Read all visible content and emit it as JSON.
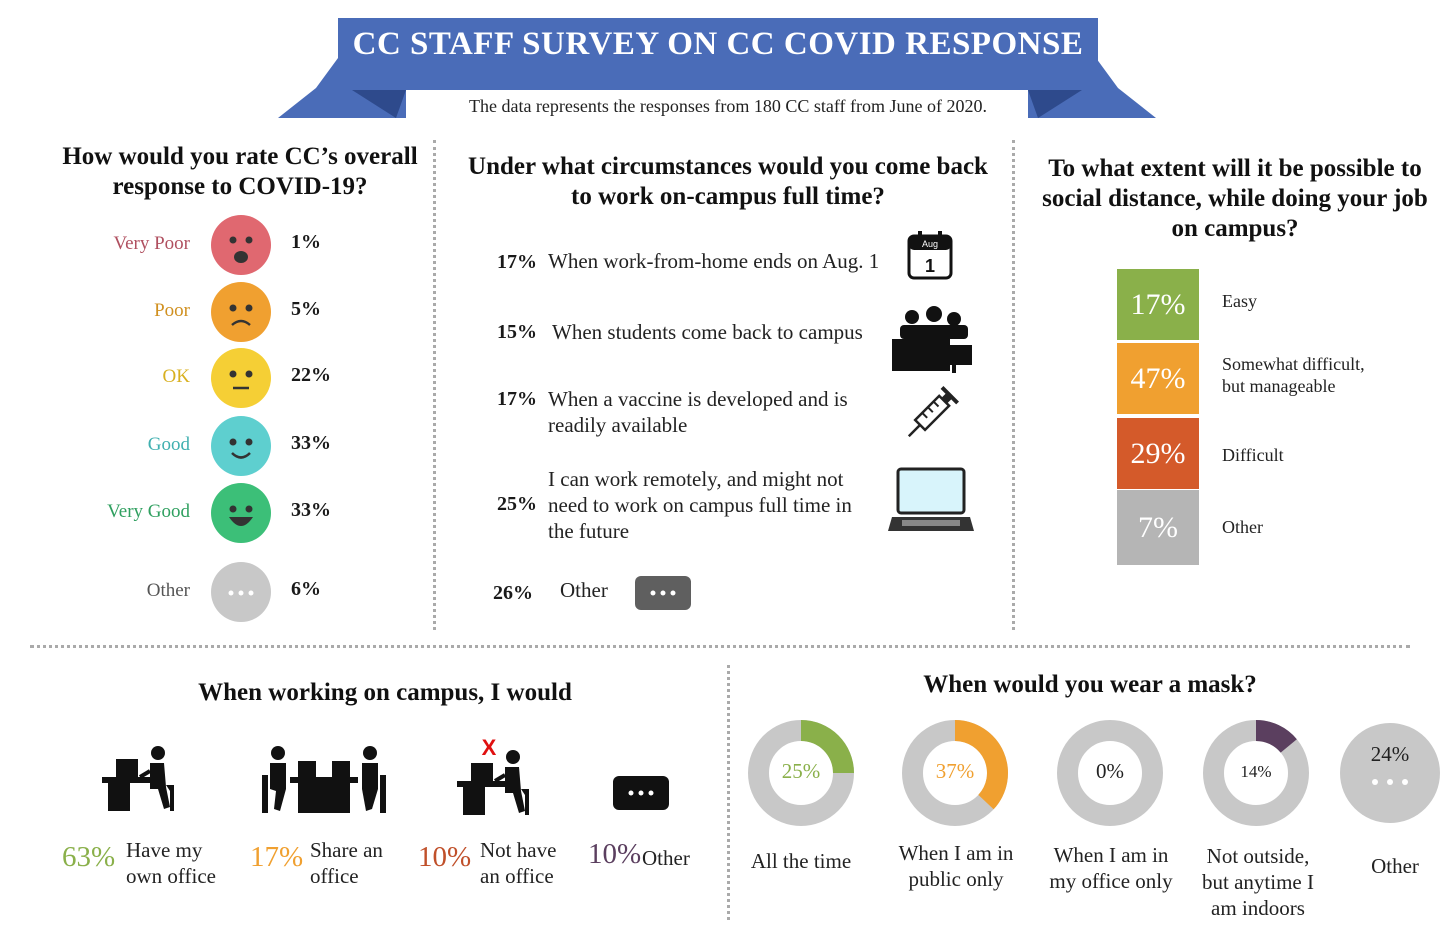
{
  "header": {
    "title": "CC STAFF SURVEY ON CC COVID RESPONSE",
    "subtitle": "The data represents the responses from 180 CC staff from June of 2020."
  },
  "colors": {
    "banner": "#4a6cb8",
    "banner_dark": "#2e4a8c",
    "very_poor": "#e06870",
    "poor": "#f0a030",
    "ok": "#f5cf35",
    "good": "#5ecfcf",
    "very_good": "#3cbf78",
    "other": "#c8c8c8",
    "easy": "#8ab04a",
    "somewhat": "#f0a030",
    "difficult": "#d45a2a",
    "dist_other": "#b5b5b5"
  },
  "chart_data": [
    {
      "type": "bar",
      "title": "How would you rate CC’s overall response to COVID-19?",
      "categories": [
        "Very Poor",
        "Poor",
        "OK",
        "Good",
        "Very Good",
        "Other"
      ],
      "values": [
        1,
        5,
        22,
        33,
        33,
        6
      ],
      "labels": [
        "1%",
        "5%",
        "22%",
        "33%",
        "33%",
        "6%"
      ],
      "icons": [
        "angry-face-icon",
        "sad-face-icon",
        "neutral-face-icon",
        "smile-face-icon",
        "grin-face-icon",
        "ellipsis-icon"
      ]
    },
    {
      "type": "table",
      "title": "Under what circumstances would you come back to work on-campus full time?",
      "rows": [
        {
          "pct": "17%",
          "value": 17,
          "lines": [
            "When work-from-home ends on Aug. 1"
          ],
          "icon": "calendar-icon",
          "cal_month": "Aug",
          "cal_day": "1"
        },
        {
          "pct": "15%",
          "value": 15,
          "lines": [
            "When students come back to campus"
          ],
          "icon": "classroom-icon"
        },
        {
          "pct": "17%",
          "value": 17,
          "lines": [
            "When a vaccine is developed and is",
            "readily available"
          ],
          "icon": "syringe-icon"
        },
        {
          "pct": "25%",
          "value": 25,
          "lines": [
            "I can work remotely, and might not",
            "need to work on campus full time in",
            "the future"
          ],
          "icon": "laptop-icon"
        },
        {
          "pct": "26%",
          "value": 26,
          "lines": [
            "Other"
          ],
          "icon": "ellipsis-icon"
        }
      ]
    },
    {
      "type": "bar",
      "title": "To what extent will it be possible to social distance, while doing your job on campus?",
      "categories": [
        "Easy",
        "Somewhat difficult, but manageable",
        "Difficult",
        "Other"
      ],
      "values": [
        17,
        47,
        29,
        7
      ],
      "labels": [
        "17%",
        "47%",
        "29%",
        "7%"
      ],
      "label_lines": [
        [
          "Easy"
        ],
        [
          "Somewhat difficult,",
          "but manageable"
        ],
        [
          "Difficult"
        ],
        [
          "Other"
        ]
      ]
    },
    {
      "type": "bar",
      "title": "When working on campus, I would",
      "categories": [
        "Have my own office",
        "Share an office",
        "Not have an office",
        "Other"
      ],
      "values": [
        63,
        17,
        10,
        10
      ],
      "labels": [
        "63%",
        "17%",
        "10%",
        "10%"
      ],
      "label_lines": [
        [
          "Have my",
          "own office"
        ],
        [
          "Share an",
          "office"
        ],
        [
          "Not have",
          "an office"
        ],
        [
          "Other"
        ]
      ],
      "icons": [
        "person-at-desk-icon",
        "shared-desk-icon",
        "no-office-icon",
        "ellipsis-icon"
      ],
      "no_office_mark": "X"
    },
    {
      "type": "pie",
      "title": "When would you wear a mask?",
      "categories": [
        "All the time",
        "When I am in public only",
        "When I am in my office only",
        "Not outside, but anytime I am indoors",
        "Other"
      ],
      "values": [
        25,
        37,
        0,
        14,
        24
      ],
      "labels": [
        "25%",
        "37%",
        "0%",
        "14%",
        "24%"
      ],
      "label_lines": [
        [
          "All the time"
        ],
        [
          "When I am in",
          "public only"
        ],
        [
          "When I am in",
          "my office only"
        ],
        [
          "Not outside,",
          "but anytime I",
          "am indoors"
        ],
        [
          "Other"
        ]
      ],
      "colors": [
        "#8ab04a",
        "#f0a030",
        "#c8c8c8",
        "#5b3f5f",
        "#c8c8c8"
      ]
    }
  ]
}
